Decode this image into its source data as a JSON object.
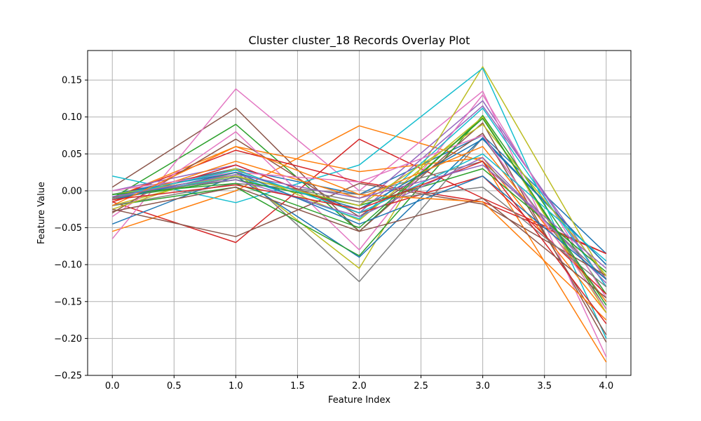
{
  "chart_data": {
    "type": "line",
    "title": "Cluster cluster_18 Records Overlay Plot",
    "xlabel": "Feature Index",
    "ylabel": "Feature Value",
    "xlim": [
      -0.2,
      4.2
    ],
    "ylim": [
      -0.25,
      0.19
    ],
    "xticks": [
      0.0,
      0.5,
      1.0,
      1.5,
      2.0,
      2.5,
      3.0,
      3.5,
      4.0
    ],
    "xtick_labels": [
      "0.0",
      "0.5",
      "1.0",
      "1.5",
      "2.0",
      "2.5",
      "3.0",
      "3.5",
      "4.0"
    ],
    "yticks": [
      -0.25,
      -0.2,
      -0.15,
      -0.1,
      -0.05,
      0.0,
      0.05,
      0.1,
      0.15
    ],
    "ytick_labels": [
      "−0.25",
      "−0.20",
      "−0.15",
      "−0.10",
      "−0.05",
      "0.00",
      "0.05",
      "0.10",
      "0.15"
    ],
    "grid": true,
    "x": [
      0,
      1,
      2,
      3,
      4
    ],
    "series": [
      {
        "color": "#1f77b4",
        "values": [
          -0.005,
          0.03,
          -0.005,
          0.075,
          -0.085
        ]
      },
      {
        "color": "#ff7f0e",
        "values": [
          -0.055,
          0.0,
          0.088,
          0.04,
          -0.232
        ]
      },
      {
        "color": "#2ca02c",
        "values": [
          -0.01,
          0.09,
          -0.055,
          0.1,
          -0.16
        ]
      },
      {
        "color": "#d62728",
        "values": [
          -0.015,
          -0.07,
          0.07,
          -0.01,
          -0.085
        ]
      },
      {
        "color": "#9467bd",
        "values": [
          -0.005,
          0.02,
          -0.02,
          0.122,
          -0.13
        ]
      },
      {
        "color": "#8c564b",
        "values": [
          0.005,
          0.112,
          -0.055,
          0.092,
          -0.205
        ]
      },
      {
        "color": "#e377c2",
        "values": [
          -0.065,
          0.138,
          0.0,
          0.135,
          -0.225
        ]
      },
      {
        "color": "#7f7f7f",
        "values": [
          -0.01,
          0.03,
          -0.123,
          0.072,
          -0.15
        ]
      },
      {
        "color": "#bcbd22",
        "values": [
          -0.02,
          0.025,
          -0.105,
          0.168,
          -0.12
        ]
      },
      {
        "color": "#17becf",
        "values": [
          0.02,
          -0.016,
          0.035,
          0.166,
          -0.2
        ]
      },
      {
        "color": "#1f77b4",
        "values": [
          -0.045,
          0.02,
          -0.09,
          0.072,
          -0.1
        ]
      },
      {
        "color": "#ff7f0e",
        "values": [
          -0.01,
          0.06,
          0.026,
          0.045,
          -0.165
        ]
      },
      {
        "color": "#2ca02c",
        "values": [
          -0.02,
          0.005,
          -0.088,
          0.102,
          -0.14
        ]
      },
      {
        "color": "#d62728",
        "values": [
          -0.01,
          0.055,
          0.012,
          -0.015,
          -0.085
        ]
      },
      {
        "color": "#9467bd",
        "values": [
          0.0,
          0.035,
          -0.03,
          0.115,
          -0.12
        ]
      },
      {
        "color": "#8c564b",
        "values": [
          -0.03,
          0.07,
          -0.035,
          0.078,
          -0.195
        ]
      },
      {
        "color": "#e377c2",
        "values": [
          -0.035,
          0.08,
          -0.08,
          0.13,
          -0.145
        ]
      },
      {
        "color": "#7f7f7f",
        "values": [
          -0.02,
          0.01,
          -0.005,
          0.04,
          -0.12
        ]
      },
      {
        "color": "#bcbd22",
        "values": [
          -0.025,
          0.03,
          -0.04,
          0.1,
          -0.165
        ]
      },
      {
        "color": "#17becf",
        "values": [
          -0.01,
          0.02,
          -0.038,
          0.112,
          -0.13
        ]
      },
      {
        "color": "#1f77b4",
        "values": [
          -0.005,
          0.025,
          -0.025,
          0.07,
          -0.1
        ]
      },
      {
        "color": "#ff7f0e",
        "values": [
          -0.015,
          0.04,
          -0.01,
          0.06,
          -0.15
        ]
      },
      {
        "color": "#2ca02c",
        "values": [
          -0.01,
          0.015,
          -0.02,
          0.03,
          -0.11
        ]
      },
      {
        "color": "#d62728",
        "values": [
          -0.015,
          0.035,
          -0.03,
          0.02,
          -0.14
        ]
      },
      {
        "color": "#9467bd",
        "values": [
          -0.005,
          0.015,
          -0.035,
          0.045,
          -0.125
        ]
      },
      {
        "color": "#8c564b",
        "values": [
          -0.025,
          -0.062,
          0.01,
          -0.018,
          -0.115
        ]
      },
      {
        "color": "#e377c2",
        "values": [
          0.0,
          0.025,
          0.012,
          0.075,
          -0.16
        ]
      },
      {
        "color": "#7f7f7f",
        "values": [
          -0.01,
          0.018,
          -0.015,
          0.005,
          -0.13
        ]
      },
      {
        "color": "#bcbd22",
        "values": [
          -0.005,
          0.02,
          -0.02,
          0.09,
          -0.115
        ]
      },
      {
        "color": "#17becf",
        "values": [
          -0.008,
          0.028,
          -0.03,
          0.05,
          -0.095
        ]
      },
      {
        "color": "#1f77b4",
        "values": [
          -0.012,
          0.025,
          -0.045,
          0.02,
          -0.12
        ]
      },
      {
        "color": "#ff7f0e",
        "values": [
          -0.02,
          0.06,
          -0.005,
          -0.015,
          -0.175
        ]
      },
      {
        "color": "#2ca02c",
        "values": [
          -0.005,
          0.01,
          -0.05,
          0.098,
          -0.155
        ]
      },
      {
        "color": "#d62728",
        "values": [
          -0.012,
          0.008,
          -0.025,
          0.04,
          -0.18
        ]
      },
      {
        "color": "#8c564b",
        "values": [
          -0.028,
          0.005,
          -0.055,
          -0.01,
          -0.145
        ]
      },
      {
        "color": "#9467bd",
        "values": [
          -0.008,
          0.022,
          -0.01,
          0.035,
          -0.105
        ]
      }
    ]
  }
}
